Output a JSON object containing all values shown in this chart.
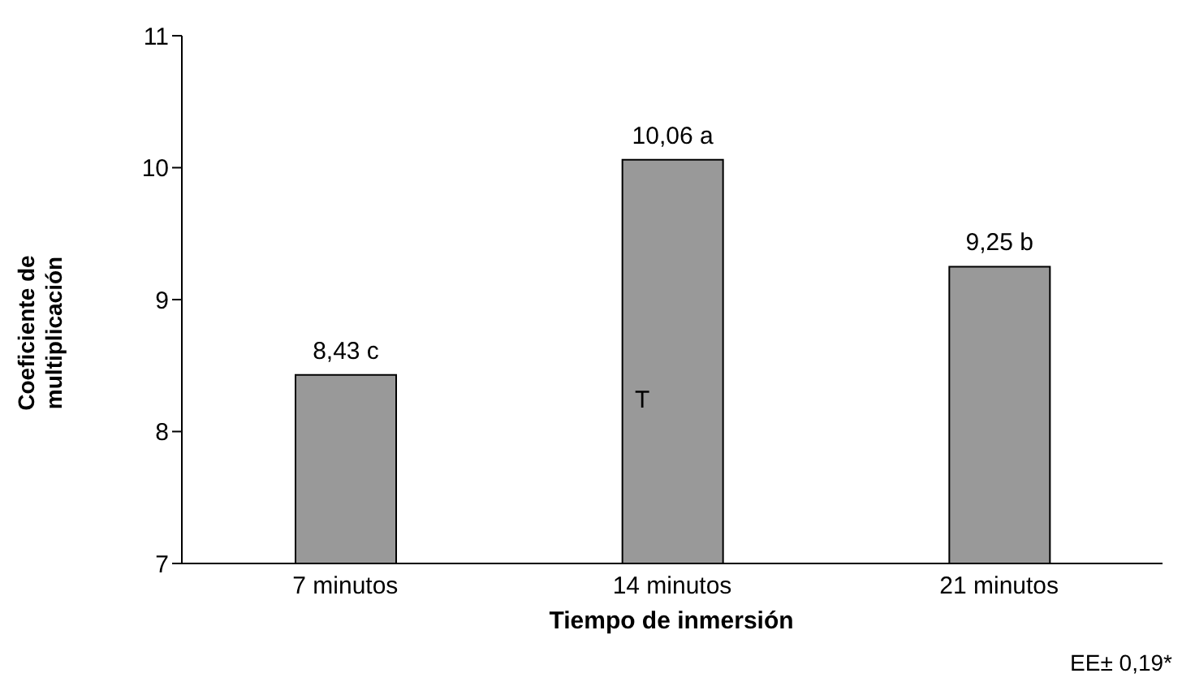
{
  "chart_data": {
    "type": "bar",
    "xlabel": "Tiempo de inmersión",
    "ylabel": "Coeficiente de multiplicación",
    "categories": [
      "7 minutos",
      "14 minutos",
      "21 minutos"
    ],
    "values": [
      8.43,
      10.06,
      9.25
    ],
    "color": "#999999",
    "value_labels": [
      "8,43 c",
      "10,06 a",
      "9,25 b"
    ],
    "ylim": [
      7,
      11
    ],
    "yticks": [
      7,
      8,
      9,
      10,
      11
    ],
    "grid": false,
    "legend": false,
    "annotations": [
      "T",
      "EE± 0,19*"
    ]
  }
}
